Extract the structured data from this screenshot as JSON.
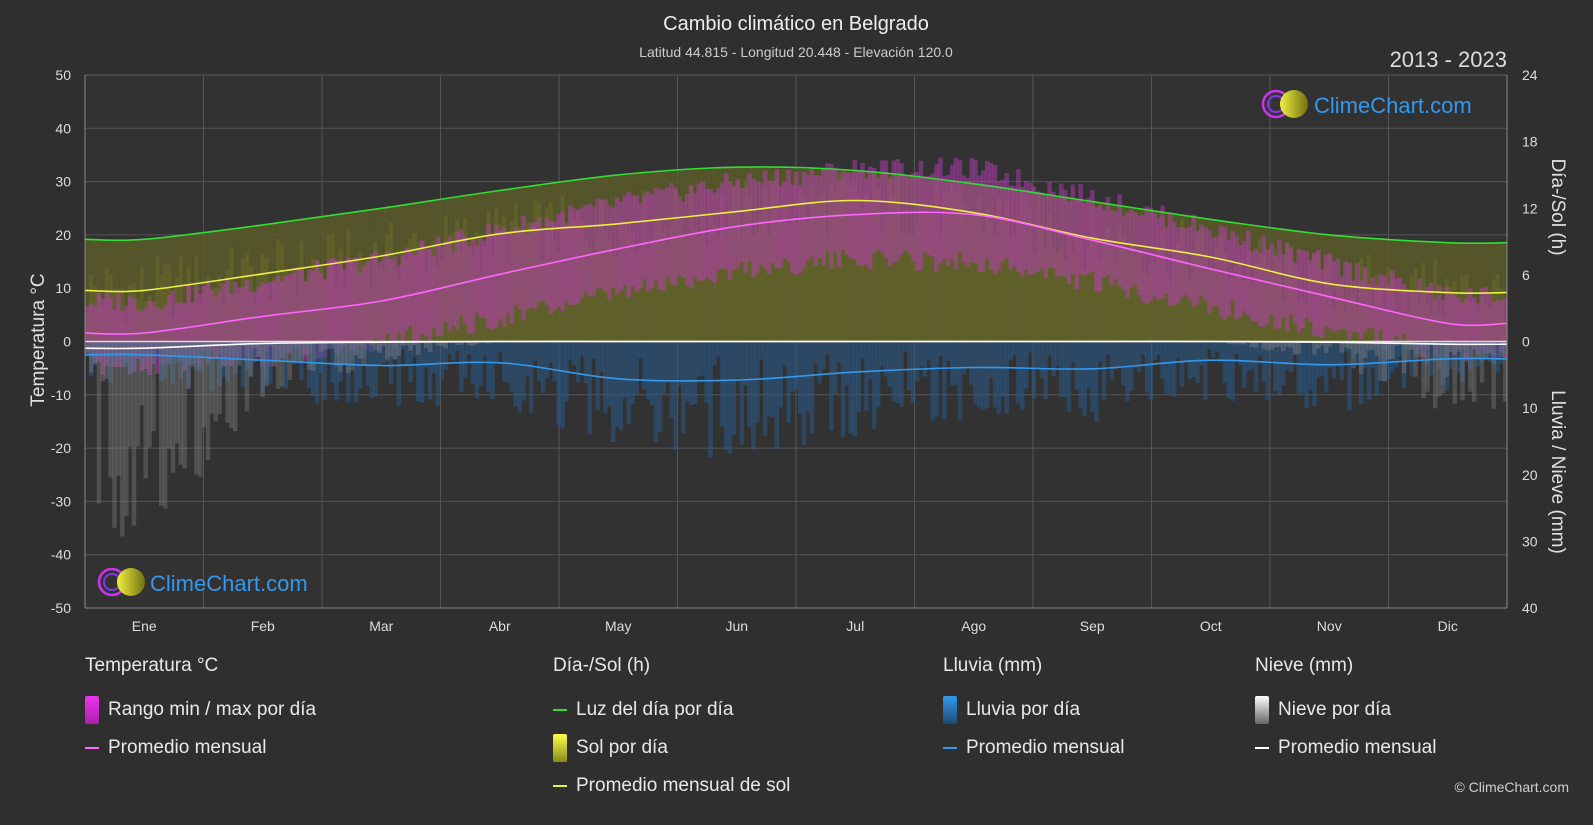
{
  "chart_data": {
    "type": "area",
    "title": "Cambio climático en Belgrado",
    "subtitle": "Latitud 44.815 - Longitud 20.448 - Elevación 120.0",
    "period": "2013 - 2023",
    "categories": [
      "Ene",
      "Feb",
      "Mar",
      "Abr",
      "May",
      "Jun",
      "Jul",
      "Ago",
      "Sep",
      "Oct",
      "Nov",
      "Dic"
    ],
    "left_axis": {
      "label": "Temperatura °C",
      "range": [
        -50,
        50
      ],
      "ticks": [
        50,
        40,
        30,
        20,
        10,
        0,
        -10,
        -20,
        -30,
        -40,
        -50
      ]
    },
    "right_axis_top": {
      "label": "Día-/Sol (h)",
      "range": [
        0,
        24
      ],
      "ticks": [
        24,
        18,
        12,
        6,
        0
      ]
    },
    "right_axis_bottom": {
      "label": "Lluvia / Nieve (mm)",
      "range": [
        0,
        40
      ],
      "ticks": [
        10,
        20,
        30,
        40
      ]
    },
    "series": [
      {
        "name": "Promedio mensual",
        "group": "Temperatura °C",
        "unit": "°C",
        "color": "#ff66ff",
        "values": [
          1.6,
          4.7,
          7.6,
          12.6,
          17.4,
          21.6,
          23.8,
          23.8,
          19.0,
          13.6,
          8.4,
          3.4
        ]
      },
      {
        "name": "Rango min / max por día",
        "group": "Temperatura °C",
        "unit": "°C",
        "color": "#cc33cc",
        "min": [
          -2.5,
          -1.0,
          2.0,
          6.5,
          11.0,
          15.5,
          17.5,
          17.0,
          13.0,
          8.5,
          4.0,
          0.0
        ],
        "max": [
          5.5,
          9.5,
          13.5,
          19.0,
          24.0,
          28.0,
          30.5,
          30.5,
          25.0,
          19.0,
          12.5,
          6.5
        ]
      },
      {
        "name": "Luz del día por día",
        "group": "Día-/Sol (h)",
        "unit": "h",
        "color": "#33dd33",
        "values": [
          9.2,
          10.5,
          12.0,
          13.6,
          15.0,
          15.7,
          15.4,
          14.2,
          12.6,
          11.0,
          9.6,
          8.9
        ]
      },
      {
        "name": "Promedio mensual de sol",
        "group": "Día-/Sol (h)",
        "unit": "h",
        "color": "#eeee44",
        "values": [
          4.6,
          6.1,
          7.7,
          9.7,
          10.6,
          11.7,
          12.7,
          11.6,
          9.3,
          7.6,
          5.2,
          4.4
        ]
      },
      {
        "name": "Promedio mensual",
        "group": "Lluvia (mm)",
        "unit": "mm",
        "color": "#3399ee",
        "values": [
          2.0,
          2.8,
          3.6,
          3.2,
          5.6,
          5.8,
          4.6,
          3.9,
          4.1,
          2.8,
          3.5,
          2.6
        ]
      },
      {
        "name": "Promedio mensual",
        "group": "Nieve (mm)",
        "unit": "mm",
        "color": "#ffffff",
        "values": [
          1.0,
          0.3,
          0.1,
          0.0,
          0.0,
          0.0,
          0.0,
          0.0,
          0.0,
          0.0,
          0.1,
          0.4
        ]
      }
    ],
    "grid": true
  },
  "brand": {
    "name": "ClimeChart.com"
  },
  "legend": {
    "temperature": {
      "title": "Temperatura °C",
      "range_label": "Rango min / max por día",
      "avg_label": "Promedio mensual"
    },
    "daylight": {
      "title": "Día-/Sol (h)",
      "daylight_label": "Luz del día por día",
      "sun_label": "Sol por día",
      "sun_avg_label": "Promedio mensual de sol"
    },
    "rain": {
      "title": "Lluvia (mm)",
      "rain_label": "Lluvia por día",
      "avg_label": "Promedio mensual"
    },
    "snow": {
      "title": "Nieve (mm)",
      "snow_label": "Nieve por día",
      "avg_label": "Promedio mensual"
    }
  },
  "copyright": "© ClimeChart.com"
}
